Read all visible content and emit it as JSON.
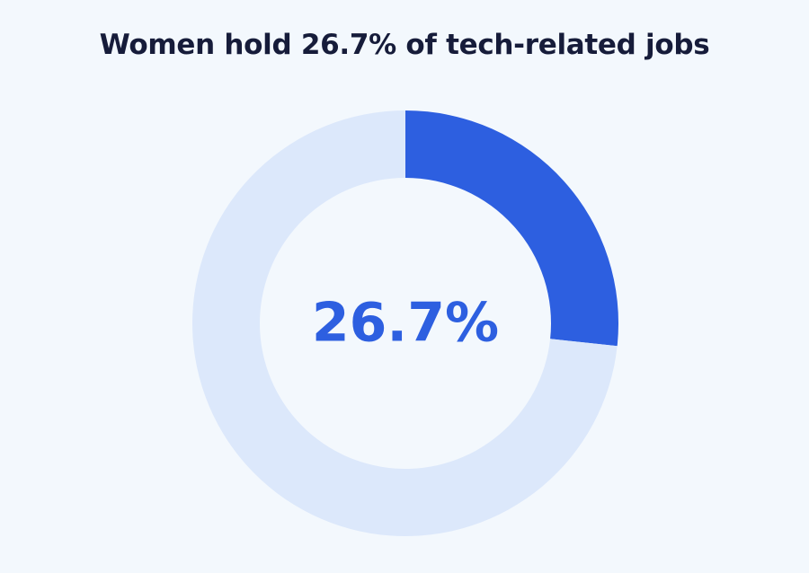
{
  "chart_data": {
    "type": "pie",
    "title": "Women hold 26.7% of tech-related jobs",
    "center_label": "26.7%",
    "slices": [
      {
        "value": 26.7,
        "color": "#2d5fe0"
      },
      {
        "value": 73.3,
        "color": "#dce8fb"
      }
    ],
    "background": "#f3f8fd",
    "title_color": "#161c3a",
    "label_color": "#2d5fe0"
  }
}
